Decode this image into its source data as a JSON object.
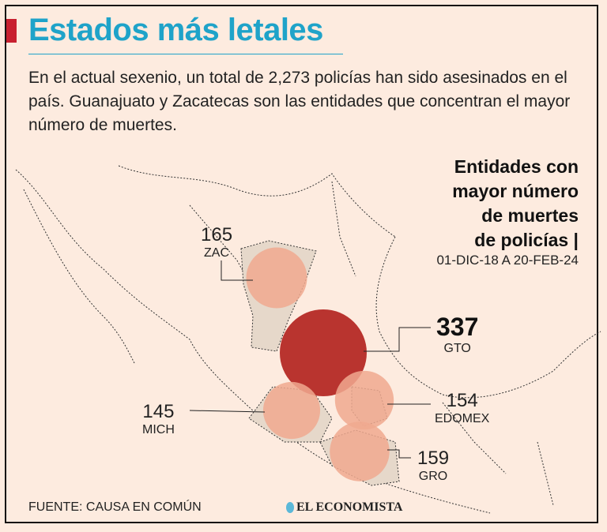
{
  "title": "Estados más letales",
  "intro": "En el actual sexenio, un total de 2,273 policías han sido asesinados en el país. Guanajuato y Zacatecas son las entidades que concentran el mayor número de muertes.",
  "side_title": [
    "Entidades con",
    "mayor número",
    "de muertes",
    "de policías |"
  ],
  "date_range": "01-DIC-18 A 20-FEB-24",
  "states": [
    {
      "abbr": "ZAC",
      "value": "165"
    },
    {
      "abbr": "GTO",
      "value": "337"
    },
    {
      "abbr": "MICH",
      "value": "145"
    },
    {
      "abbr": "EDOMEX",
      "value": "154"
    },
    {
      "abbr": "GRO",
      "value": "159"
    }
  ],
  "source": "FUENTE: CAUSA EN COMÚN",
  "logo": "EL ECONOMISTA",
  "colors": {
    "accent": "#1fa3c9",
    "bubble": "#f0a98f",
    "max_bubble": "#b52a25"
  }
}
